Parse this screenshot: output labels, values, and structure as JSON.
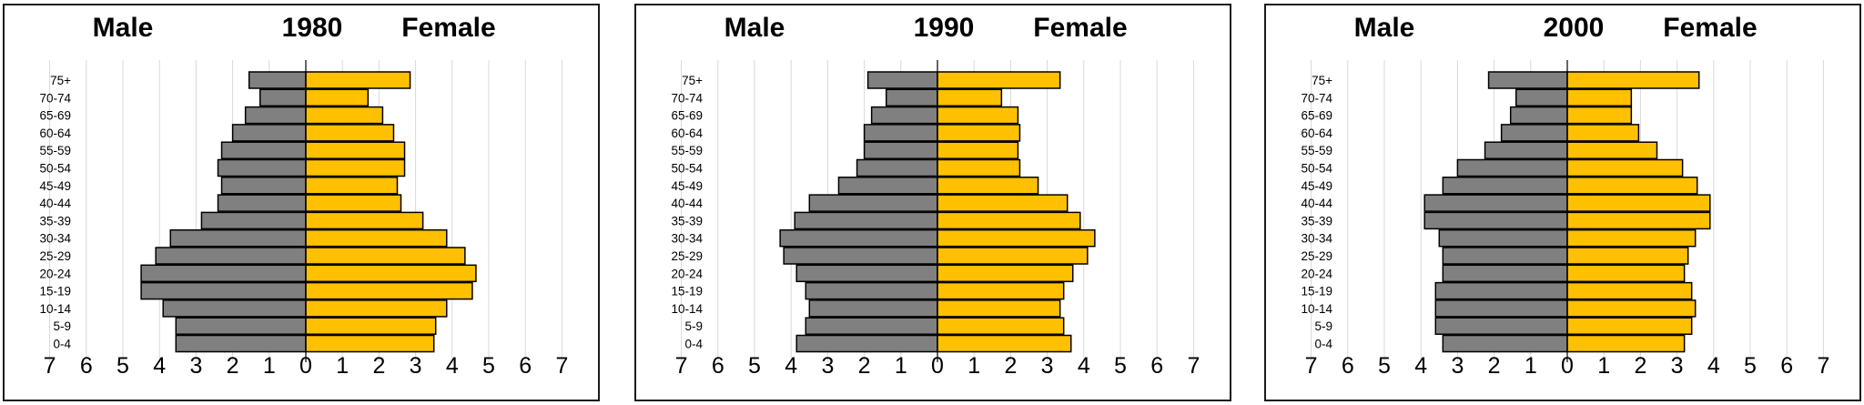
{
  "chart_data": [
    {
      "type": "bar",
      "orientation": "horizontal-population-pyramid",
      "title": "1980",
      "left_label": "Male",
      "right_label": "Female",
      "categories": [
        "75+",
        "70-74",
        "65-69",
        "60-64",
        "55-59",
        "50-54",
        "45-49",
        "40-44",
        "35-39",
        "30-34",
        "25-29",
        "20-24",
        "15-19",
        "10-14",
        "5-9",
        "0-4"
      ],
      "series": [
        {
          "values": [
            1.55,
            1.25,
            1.65,
            2.0,
            2.3,
            2.4,
            2.3,
            2.4,
            2.85,
            3.7,
            4.1,
            4.5,
            4.5,
            3.9,
            3.55,
            3.55
          ]
        },
        {
          "values": [
            2.85,
            1.7,
            2.1,
            2.4,
            2.7,
            2.7,
            2.5,
            2.6,
            3.2,
            3.85,
            4.35,
            4.65,
            4.55,
            3.85,
            3.55,
            3.5
          ]
        }
      ],
      "x_ticks": [
        "7",
        "6",
        "5",
        "4",
        "3",
        "2",
        "1",
        "0",
        "1",
        "2",
        "3",
        "4",
        "5",
        "6",
        "7"
      ],
      "xlim": [
        -7,
        7
      ],
      "grid": true,
      "colors": {
        "male": "#808080",
        "female": "#FFC000",
        "edge": "#000000",
        "grid": "#d9d9d9"
      }
    },
    {
      "type": "bar",
      "orientation": "horizontal-population-pyramid",
      "title": "1990",
      "left_label": "Male",
      "right_label": "Female",
      "categories": [
        "75+",
        "70-74",
        "65-69",
        "60-64",
        "55-59",
        "50-54",
        "45-49",
        "40-44",
        "35-39",
        "30-34",
        "25-29",
        "20-24",
        "15-19",
        "10-14",
        "5-9",
        "0-4"
      ],
      "series": [
        {
          "values": [
            1.9,
            1.4,
            1.8,
            2.0,
            2.0,
            2.2,
            2.7,
            3.5,
            3.9,
            4.3,
            4.2,
            3.85,
            3.6,
            3.5,
            3.6,
            3.85
          ]
        },
        {
          "values": [
            3.35,
            1.75,
            2.2,
            2.25,
            2.2,
            2.25,
            2.75,
            3.55,
            3.9,
            4.3,
            4.1,
            3.7,
            3.45,
            3.35,
            3.45,
            3.65
          ]
        }
      ],
      "x_ticks": [
        "7",
        "6",
        "5",
        "4",
        "3",
        "2",
        "1",
        "0",
        "1",
        "2",
        "3",
        "4",
        "5",
        "6",
        "7"
      ],
      "xlim": [
        -7,
        7
      ],
      "grid": true,
      "colors": {
        "male": "#808080",
        "female": "#FFC000",
        "edge": "#000000",
        "grid": "#d9d9d9"
      }
    },
    {
      "type": "bar",
      "orientation": "horizontal-population-pyramid",
      "title": "2000",
      "left_label": "Male",
      "right_label": "Female",
      "categories": [
        "75+",
        "70-74",
        "65-69",
        "60-64",
        "55-59",
        "50-54",
        "45-49",
        "40-44",
        "35-39",
        "30-34",
        "25-29",
        "20-24",
        "15-19",
        "10-14",
        "5-9",
        "0-4"
      ],
      "series": [
        {
          "values": [
            2.15,
            1.4,
            1.55,
            1.8,
            2.25,
            3.0,
            3.4,
            3.9,
            3.9,
            3.5,
            3.4,
            3.4,
            3.6,
            3.6,
            3.6,
            3.4
          ]
        },
        {
          "values": [
            3.6,
            1.75,
            1.75,
            1.95,
            2.45,
            3.15,
            3.55,
            3.9,
            3.9,
            3.5,
            3.3,
            3.2,
            3.4,
            3.5,
            3.4,
            3.2
          ]
        }
      ],
      "x_ticks": [
        "7",
        "6",
        "5",
        "4",
        "3",
        "2",
        "1",
        "0",
        "1",
        "2",
        "3",
        "4",
        "5",
        "6",
        "7"
      ],
      "xlim": [
        -7,
        7
      ],
      "grid": true,
      "colors": {
        "male": "#808080",
        "female": "#FFC000",
        "edge": "#000000",
        "grid": "#d9d9d9"
      }
    }
  ]
}
